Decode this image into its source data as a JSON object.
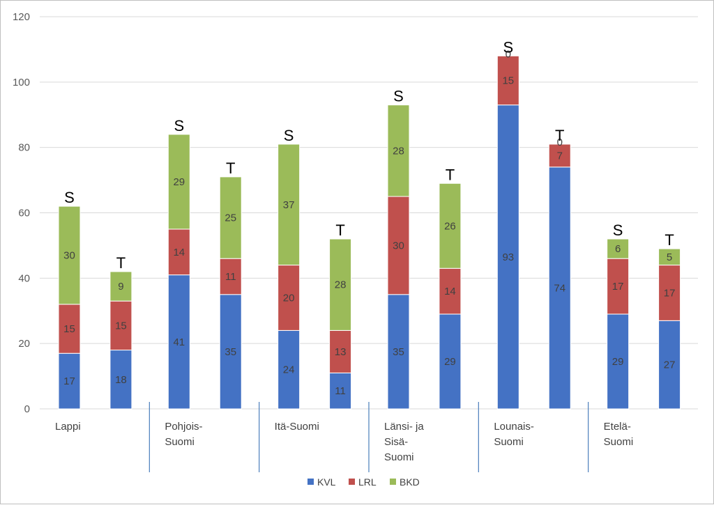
{
  "chart_data": {
    "type": "bar",
    "stacked": true,
    "ylim": [
      0,
      120
    ],
    "yticks": [
      0,
      20,
      40,
      60,
      80,
      100,
      120
    ],
    "grid": true,
    "legend_position": "bottom",
    "groups": [
      {
        "label": "Lappi",
        "bars": [
          {
            "marker": "S",
            "values": [
              17,
              15,
              30
            ]
          },
          {
            "marker": "T",
            "values": [
              18,
              15,
              9
            ]
          }
        ]
      },
      {
        "label": "Pohjois-\nSuomi",
        "bars": [
          {
            "marker": "S",
            "values": [
              41,
              14,
              29
            ]
          },
          {
            "marker": "T",
            "values": [
              35,
              11,
              25
            ]
          }
        ]
      },
      {
        "label": "Itä-Suomi",
        "bars": [
          {
            "marker": "S",
            "values": [
              24,
              20,
              37
            ]
          },
          {
            "marker": "T",
            "values": [
              11,
              13,
              28
            ]
          }
        ]
      },
      {
        "label": "Länsi- ja\nSisä-\nSuomi",
        "bars": [
          {
            "marker": "S",
            "values": [
              35,
              30,
              28
            ]
          },
          {
            "marker": "T",
            "values": [
              29,
              14,
              26
            ]
          }
        ]
      },
      {
        "label": "Lounais-\nSuomi",
        "bars": [
          {
            "marker": "S",
            "values": [
              93,
              15,
              0
            ]
          },
          {
            "marker": "T",
            "values": [
              74,
              7,
              0
            ]
          }
        ]
      },
      {
        "label": "Etelä-\nSuomi",
        "bars": [
          {
            "marker": "S",
            "values": [
              29,
              17,
              6
            ]
          },
          {
            "marker": "T",
            "values": [
              27,
              17,
              5
            ]
          }
        ]
      }
    ],
    "series": [
      {
        "name": "KVL",
        "color": "#4472c4"
      },
      {
        "name": "LRL",
        "color": "#c0504d"
      },
      {
        "name": "BKD",
        "color": "#9bbb59"
      }
    ]
  }
}
